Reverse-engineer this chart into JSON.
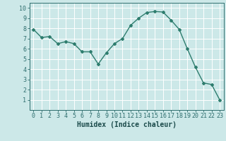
{
  "x": [
    0,
    1,
    2,
    3,
    4,
    5,
    6,
    7,
    8,
    9,
    10,
    11,
    12,
    13,
    14,
    15,
    16,
    17,
    18,
    19,
    20,
    21,
    22,
    23
  ],
  "y": [
    7.9,
    7.1,
    7.2,
    6.5,
    6.7,
    6.5,
    5.7,
    5.7,
    4.5,
    5.6,
    6.5,
    7.0,
    8.3,
    9.0,
    9.55,
    9.65,
    9.6,
    8.8,
    7.9,
    6.0,
    4.2,
    2.65,
    2.5,
    1.0
  ],
  "line_color": "#2e7d6e",
  "marker": "D",
  "marker_size": 2,
  "linewidth": 1.0,
  "xlabel": "Humidex (Indice chaleur)",
  "xlim": [
    -0.5,
    23.5
  ],
  "ylim": [
    0,
    10.5
  ],
  "yticks": [
    1,
    2,
    3,
    4,
    5,
    6,
    7,
    8,
    9,
    10
  ],
  "xticks": [
    0,
    1,
    2,
    3,
    4,
    5,
    6,
    7,
    8,
    9,
    10,
    11,
    12,
    13,
    14,
    15,
    16,
    17,
    18,
    19,
    20,
    21,
    22,
    23
  ],
  "bg_color": "#cce8e8",
  "grid_color": "#ffffff",
  "tick_color": "#2e6e6e",
  "label_color": "#1a4a4a",
  "xlabel_fontsize": 7,
  "tick_fontsize": 6
}
